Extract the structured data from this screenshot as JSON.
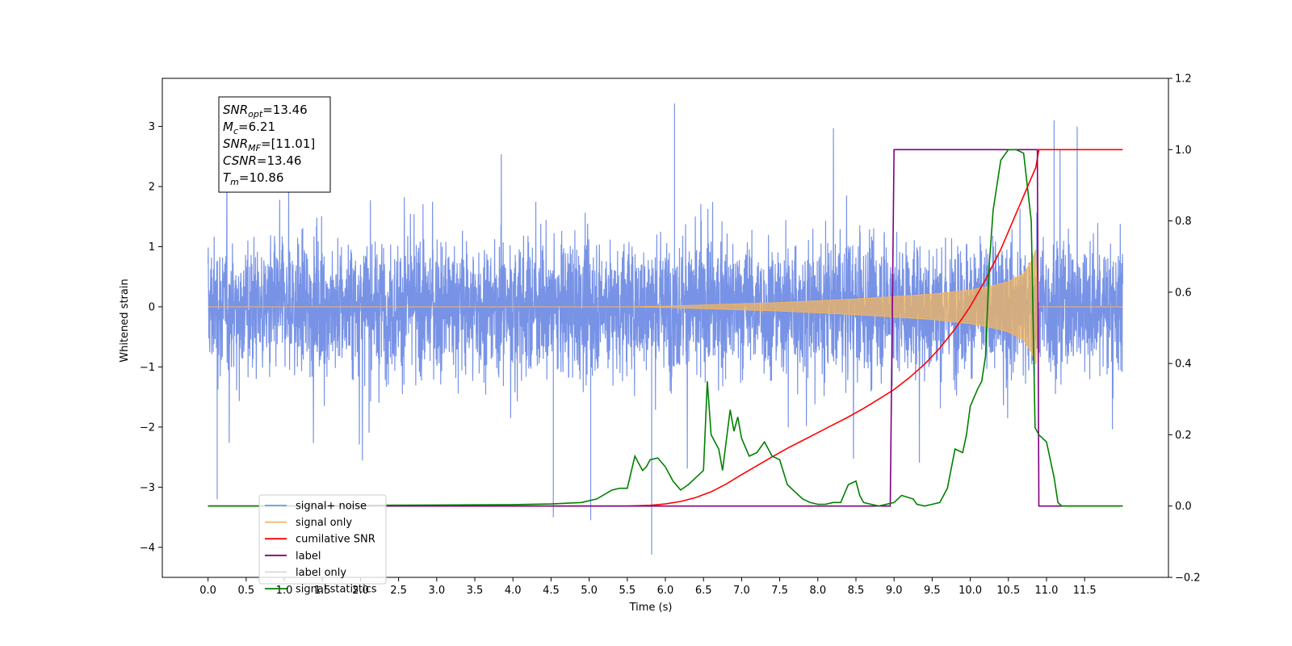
{
  "chart_data": {
    "type": "line",
    "xlabel": "Time (s)",
    "ylabel": "Whitened strain",
    "xlim": [
      -0.6,
      12.6
    ],
    "ylim": [
      -4.5,
      3.8
    ],
    "ylim_right": [
      -0.2,
      1.2
    ],
    "xticks": [
      "0.0",
      "0.5",
      "1.0",
      "1.5",
      "2.0",
      "2.5",
      "3.0",
      "3.5",
      "4.0",
      "4.5",
      "5.0",
      "5.5",
      "6.0",
      "6.5",
      "7.0",
      "7.5",
      "8.0",
      "8.5",
      "9.0",
      "9.5",
      "10.0",
      "10.5",
      "11.0",
      "11.5"
    ],
    "yticks_left": [
      "−4",
      "−3",
      "−2",
      "−1",
      "0",
      "1",
      "2",
      "3"
    ],
    "yticks_right": [
      "−0.2",
      "0.0",
      "0.2",
      "0.4",
      "0.6",
      "0.8",
      "1.0",
      "1.2"
    ],
    "grid": false,
    "legend_position": "lower-left",
    "annotation": {
      "lines": [
        {
          "sym": "SNR",
          "sub": "opt",
          "text": "=13.46"
        },
        {
          "sym": "M",
          "sub": "c",
          "text": "=6.21"
        },
        {
          "sym": "SNR",
          "sub": "MF",
          "text": "=[11.01]"
        },
        {
          "sym": "CSNR",
          "sub": "",
          "text": "=13.46"
        },
        {
          "sym": "T",
          "sub": "m",
          "text": "=10.86"
        }
      ]
    },
    "series": [
      {
        "name": "signal+ noise",
        "color": "#7893e6",
        "axis": "left",
        "x_range": [
          0.0,
          12.0
        ],
        "noise_envelope": {
          "band_low": -1.75,
          "band_high": 1.75,
          "max": 3.38,
          "min": -4.12
        }
      },
      {
        "name": "signal only",
        "color": "#f2b45f",
        "axis": "left",
        "x_range": [
          0.0,
          12.0
        ],
        "amplitude": {
          "x": [
            0.0,
            5.5,
            6.0,
            6.5,
            7.0,
            7.5,
            8.0,
            8.5,
            9.0,
            9.5,
            10.0,
            10.3,
            10.5,
            10.7,
            10.8,
            10.86,
            10.87,
            12.0
          ],
          "y": [
            0.0,
            0.0,
            0.01,
            0.03,
            0.05,
            0.07,
            0.1,
            0.13,
            0.17,
            0.21,
            0.28,
            0.35,
            0.42,
            0.55,
            0.75,
            0.95,
            0.0,
            0.0
          ]
        }
      },
      {
        "name": "cumilative SNR",
        "color": "#ff0000",
        "axis": "right",
        "x": [
          0.0,
          5.5,
          5.8,
          6.0,
          6.2,
          6.4,
          6.6,
          6.8,
          7.0,
          7.2,
          7.4,
          7.6,
          7.8,
          8.0,
          8.2,
          8.4,
          8.6,
          8.8,
          9.0,
          9.2,
          9.4,
          9.6,
          9.8,
          10.0,
          10.2,
          10.4,
          10.6,
          10.8,
          10.86,
          10.9,
          11.0,
          12.0
        ],
        "y": [
          0.0,
          0.0,
          0.002,
          0.006,
          0.013,
          0.024,
          0.04,
          0.062,
          0.088,
          0.113,
          0.138,
          0.162,
          0.184,
          0.206,
          0.228,
          0.25,
          0.274,
          0.3,
          0.327,
          0.36,
          0.398,
          0.443,
          0.497,
          0.56,
          0.635,
          0.72,
          0.82,
          0.92,
          0.95,
          1.0,
          1.0,
          1.0
        ]
      },
      {
        "name": "label",
        "color": "#800080",
        "axis": "right",
        "x": [
          0.0,
          8.95,
          9.0,
          10.88,
          10.9,
          12.0
        ],
        "y": [
          0.0,
          0.0,
          1.0,
          1.0,
          0.0,
          0.0
        ]
      },
      {
        "name": "label only",
        "color": "#d9d9d9",
        "axis": "right",
        "hidden": true
      },
      {
        "name": "signal statistics",
        "color": "#008000",
        "axis": "right",
        "x": [
          0.0,
          1.0,
          2.0,
          3.0,
          4.0,
          4.5,
          4.9,
          5.1,
          5.3,
          5.4,
          5.5,
          5.6,
          5.7,
          5.75,
          5.8,
          5.9,
          6.0,
          6.1,
          6.2,
          6.3,
          6.4,
          6.5,
          6.55,
          6.6,
          6.7,
          6.75,
          6.85,
          6.9,
          6.95,
          7.0,
          7.1,
          7.2,
          7.3,
          7.4,
          7.5,
          7.6,
          7.7,
          7.8,
          7.9,
          8.0,
          8.1,
          8.2,
          8.3,
          8.4,
          8.5,
          8.55,
          8.6,
          8.7,
          8.8,
          9.0,
          9.1,
          9.25,
          9.3,
          9.4,
          9.5,
          9.6,
          9.7,
          9.8,
          9.9,
          9.95,
          10.0,
          10.1,
          10.15,
          10.2,
          10.25,
          10.3,
          10.4,
          10.5,
          10.6,
          10.7,
          10.8,
          10.85,
          10.9,
          11.0,
          11.1,
          11.15,
          11.2,
          11.3,
          12.0
        ],
        "y": [
          0.0,
          0.0,
          0.002,
          0.003,
          0.004,
          0.006,
          0.01,
          0.02,
          0.045,
          0.05,
          0.05,
          0.14,
          0.1,
          0.11,
          0.13,
          0.135,
          0.11,
          0.07,
          0.045,
          0.06,
          0.08,
          0.1,
          0.35,
          0.2,
          0.16,
          0.1,
          0.27,
          0.21,
          0.25,
          0.19,
          0.14,
          0.15,
          0.18,
          0.14,
          0.13,
          0.06,
          0.04,
          0.02,
          0.01,
          0.005,
          0.005,
          0.01,
          0.01,
          0.06,
          0.07,
          0.03,
          0.01,
          0.005,
          0.0,
          0.01,
          0.03,
          0.02,
          0.005,
          0.0,
          0.005,
          0.01,
          0.05,
          0.16,
          0.15,
          0.2,
          0.28,
          0.33,
          0.35,
          0.42,
          0.68,
          0.83,
          0.97,
          1.0,
          1.0,
          0.99,
          0.8,
          0.22,
          0.2,
          0.18,
          0.08,
          0.01,
          0.0,
          0.0,
          0.0
        ]
      }
    ]
  }
}
